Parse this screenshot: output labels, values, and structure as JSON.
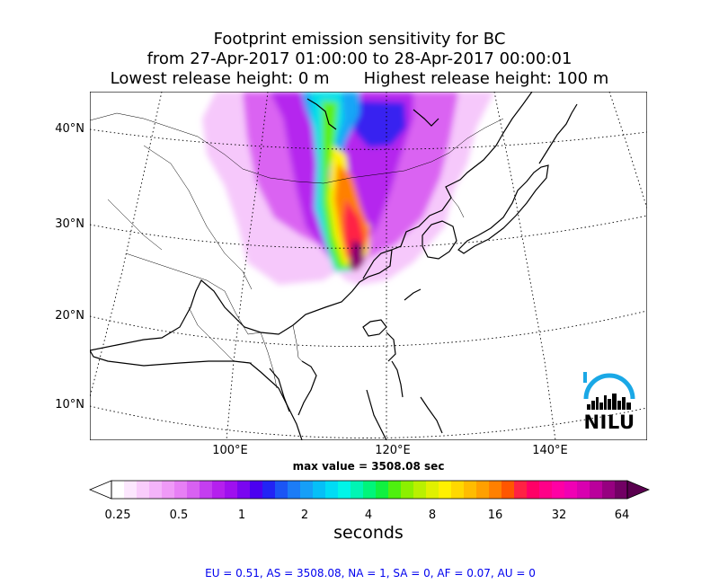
{
  "title": {
    "line1": "Footprint emission sensitivity for BC",
    "line2": "from 27-Apr-2017 01:00:00 to 28-Apr-2017 00:00:01",
    "line3_left": "Lowest release height: 0 m",
    "line3_right": "Highest release height: 100 m"
  },
  "axes": {
    "lat_labels": [
      "40°N",
      "30°N",
      "20°N",
      "10°N"
    ],
    "lon_labels": [
      "100°E",
      "120°E",
      "140°E"
    ]
  },
  "max_value_text": "max value = 3508.08 sec",
  "colorbar": {
    "ticks": [
      "0.25",
      "0.5",
      "1",
      "2",
      "4",
      "8",
      "16",
      "32",
      "64"
    ],
    "unit": "seconds",
    "colors": [
      "#ffffff",
      "#fce7fe",
      "#f9cdfc",
      "#f4b4fa",
      "#ef9af7",
      "#e77ff5",
      "#d861f2",
      "#c43ef0",
      "#b520ee",
      "#9f10ef",
      "#7a06f0",
      "#4b00f0",
      "#2224f5",
      "#1b55f5",
      "#1c7cf6",
      "#169ff7",
      "#06bff7",
      "#00dcf5",
      "#00f5e8",
      "#00f5b4",
      "#00f57a",
      "#10f040",
      "#4ef00f",
      "#8cf000",
      "#b9f000",
      "#e0f000",
      "#fff000",
      "#ffd800",
      "#ffbc00",
      "#ffa000",
      "#ff8000",
      "#ff5600",
      "#ff2244",
      "#ff0066",
      "#ff0088",
      "#ff00a4",
      "#f000b4",
      "#d800b0",
      "#ba009c",
      "#960080",
      "#720064"
    ],
    "max_color": "#5a004f"
  },
  "logo": "NILU",
  "footer": "EU = 0.51,  AS = 3508.08,  NA = 1,  SA = 0,  AF = 0.07,  AU = 0"
}
